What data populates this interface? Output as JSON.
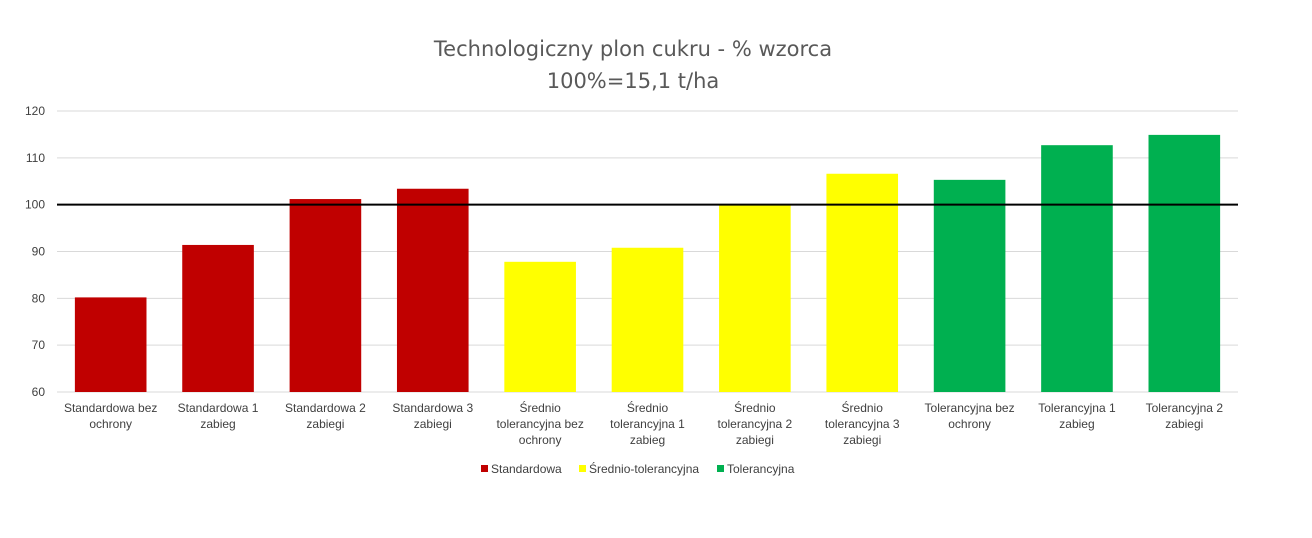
{
  "chart_data": {
    "type": "bar",
    "title": "Technologiczny plon cukru - % wzorca",
    "subtitle": "100%=15,1 t/ha",
    "ylim": [
      60,
      120
    ],
    "yticks": [
      "60",
      "70",
      "80",
      "90",
      "100",
      "110",
      "120"
    ],
    "grid": true,
    "reference_line": 100,
    "legend_position": "bottom",
    "categories": [
      [
        "Standardowa bez",
        "ochrony"
      ],
      [
        "Standardowa 1",
        "zabieg"
      ],
      [
        "Standardowa 2",
        "zabiegi"
      ],
      [
        "Standardowa 3",
        "zabiegi"
      ],
      [
        "Średnio",
        "tolerancyjna bez",
        "ochrony"
      ],
      [
        "Średnio",
        "tolerancyjna 1",
        "zabieg"
      ],
      [
        "Średnio",
        "tolerancyjna 2",
        "zabiegi"
      ],
      [
        "Średnio",
        "tolerancyjna 3",
        "zabiegi"
      ],
      [
        "Tolerancyjna bez",
        "ochrony"
      ],
      [
        "Tolerancyjna 1",
        "zabieg"
      ],
      [
        "Tolerancyjna 2",
        "zabiegi"
      ]
    ],
    "values": [
      80.2,
      91.4,
      101.2,
      103.4,
      87.8,
      90.8,
      99.9,
      106.6,
      105.3,
      112.7,
      114.9
    ],
    "groups": [
      0,
      0,
      0,
      0,
      1,
      1,
      1,
      1,
      2,
      2,
      2
    ],
    "series": [
      {
        "name": "Standardowa",
        "color": "#C00000"
      },
      {
        "name": "Średnio-tolerancyjna",
        "color": "#FFFF00"
      },
      {
        "name": "Tolerancyjna",
        "color": "#00B050"
      }
    ]
  }
}
